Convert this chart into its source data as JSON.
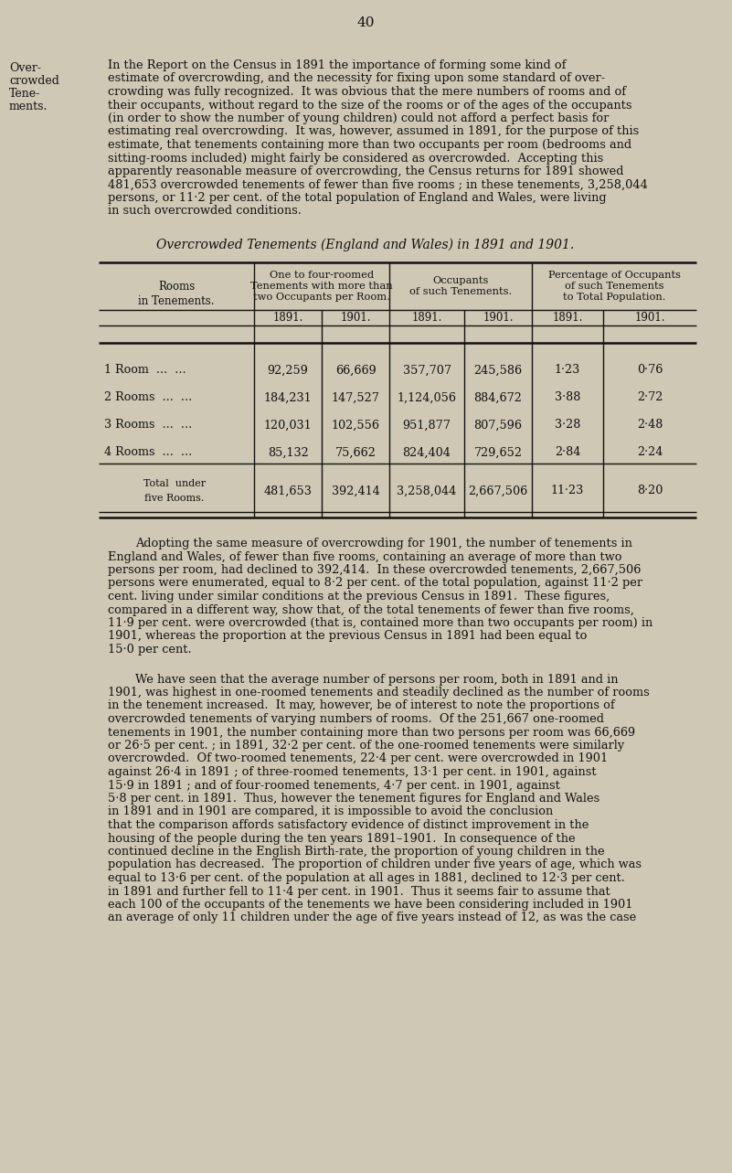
{
  "bg_color": "#cec8b5",
  "text_color": "#111111",
  "page_number": "40",
  "sidebar_lines": [
    "Over-",
    "crowded",
    "Tene-",
    "ments."
  ],
  "para1_lines": [
    "In the Report on the Census in 1891 the importance of forming some kind of",
    "estimate of overcrowding, and the necessity for fixing upon some standard of over-",
    "crowding was fully recognized.  It was obvious that the mere numbers of rooms and of",
    "their occupants, without regard to the size of the rooms or of the ages of the occupants",
    "(in order to show the number of young children) could not afford a perfect basis for",
    "estimating real overcrowding.  It was, however, assumed in 1891, for the purpose of this",
    "estimate, that tenements containing more than two occupants per room (bedrooms and",
    "sitting-rooms included) might fairly be considered as overcrowded.  Accepting this",
    "apparently reasonable measure of overcrowding, the Census returns for 1891 showed",
    "481,653 overcrowded tenements of fewer than five rooms ; in these tenements, 3,258,044",
    "persons, or 11·2 per cent. of the total population of England and Wales, were living",
    "in such overcrowded conditions."
  ],
  "table_title": "Overcrowded Tenements (England and Wales) in 1891 and 1901.",
  "para2_lines": [
    "Adopting the same measure of overcrowding for 1901, the number of tenements in",
    "England and Wales, of fewer than five rooms, containing an average of more than two",
    "persons per room, had declined to 392,414.  In these overcrowded tenements, 2,667,506",
    "persons were enumerated, equal to 8·2 per cent. of the total population, against 11·2 per",
    "cent. living under similar conditions at the previous Census in 1891.  These figures,",
    "compared in a different way, show that, of the total tenements of fewer than five rooms,",
    "11·9 per cent. were overcrowded (that is, contained more than two occupants per room) in",
    "1901, whereas the proportion at the previous Census in 1891 had been equal to",
    "15·0 per cent."
  ],
  "para3_lines": [
    "We have seen that the average number of persons per room, both in 1891 and in",
    "1901, was highest in one-roomed tenements and steadily declined as the number of rooms",
    "in the tenement increased.  It may, however, be of interest to note the proportions of",
    "overcrowded tenements of varying numbers of rooms.  Of the 251,667 one-roomed",
    "tenements in 1901, the number containing more than two persons per room was 66,669",
    "or 26·5 per cent. ; in 1891, 32·2 per cent. of the one-roomed tenements were similarly",
    "overcrowded.  Of two-roomed tenements, 22·4 per cent. were overcrowded in 1901",
    "against 26·4 in 1891 ; of three-roomed tenements, 13·1 per cent. in 1901, against",
    "15·9 in 1891 ; and of four-roomed tenements, 4·7 per cent. in 1901, against",
    "5·8 per cent. in 1891.  Thus, however the tenement figures for England and Wales",
    "in 1891 and in 1901 are compared, it is impossible to avoid the conclusion",
    "that the comparison affords satisfactory evidence of distinct improvement in the",
    "housing of the people during the ten years 1891–1901.  In consequence of the",
    "continued decline in the English Birth-rate, the proportion of young children in the",
    "population has decreased.  The proportion of children under five years of age, which was",
    "equal to 13·6 per cent. of the population at all ages in 1881, declined to 12·3 per cent.",
    "in 1891 and further fell to 11·4 per cent. in 1901.  Thus it seems fair to assume that",
    "each 100 of the occupants of the tenements we have been considering included in 1901",
    "an average of only 11 children under the age of five years instead of 12, as was the case"
  ],
  "col_header1": "One to four-roomed\nTenements with more than\ntwo Occupants per Room.",
  "col_header2": "Occupants\nof such Tenements.",
  "col_header3": "Percentage of Occupants\nof such Tenements\nto Total Population.",
  "row_label_header": "Rooms\nin Tenements.",
  "row_labels": [
    "1 Room  ...  ...",
    "2 Rooms  ...  ...",
    "3 Rooms  ...  ...",
    "4 Rooms  ...  ..."
  ],
  "total_label_line1": "Total  under",
  "total_label_line2": "five Rooms.",
  "data_rows": [
    [
      "92,259",
      "66,669",
      "357,707",
      "245,586",
      "1·23",
      "0·76"
    ],
    [
      "184,231",
      "147,527",
      "1,124,056",
      "884,672",
      "3·88",
      "2·72"
    ],
    [
      "120,031",
      "102,556",
      "951,877",
      "807,596",
      "3·28",
      "2·48"
    ],
    [
      "85,132",
      "75,662",
      "824,404",
      "729,652",
      "2·84",
      "2·24"
    ]
  ],
  "total_row": [
    "481,653",
    "392,414",
    "3,258,044",
    "2,667,506",
    "11·23",
    "8·20"
  ],
  "years": [
    "1891.",
    "1901.",
    "1891.",
    "1901.",
    "1891.",
    "1901."
  ]
}
